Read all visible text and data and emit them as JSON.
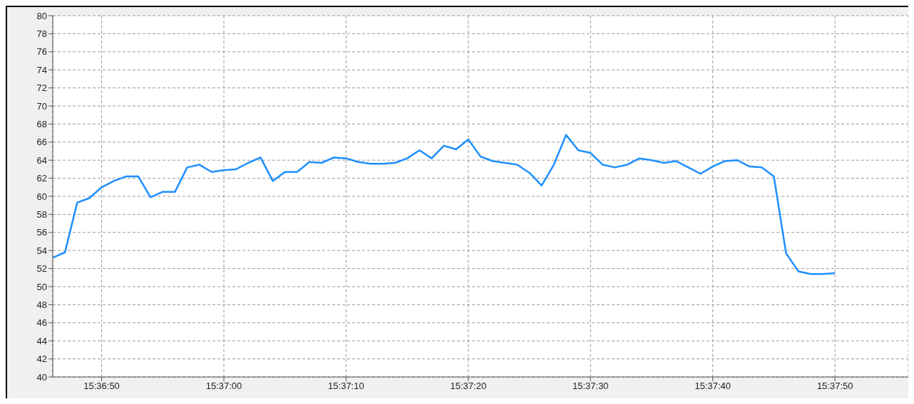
{
  "chart_data": {
    "type": "line",
    "x": [
      15.612778,
      15.613056,
      15.613333,
      15.613611,
      15.613889,
      15.614167,
      15.614444,
      15.614722,
      15.615,
      15.615278,
      15.615556,
      15.615833,
      15.616111,
      15.616389,
      15.616667,
      15.616944,
      15.617222,
      15.6175,
      15.617778,
      15.618056,
      15.618333,
      15.618611,
      15.618889,
      15.619167,
      15.619444,
      15.619722,
      15.62,
      15.620278,
      15.620556,
      15.620833,
      15.621111,
      15.621389,
      15.621667,
      15.621944,
      15.622222,
      15.6225,
      15.622778,
      15.623056,
      15.623333,
      15.623611,
      15.623889,
      15.624167,
      15.624444,
      15.624722,
      15.625,
      15.625278,
      15.625556,
      15.625833,
      15.626111,
      15.626389,
      15.626667,
      15.626944,
      15.627222,
      15.6275,
      15.627778,
      15.628056,
      15.628333,
      15.628611,
      15.628889,
      15.629167,
      15.629444,
      15.629722,
      15.63,
      15.630278,
      15.630556
    ],
    "series": [
      {
        "color": "#1e8fff",
        "values": [
          53.2,
          53.8,
          59.3,
          59.8,
          61.0,
          61.7,
          62.2,
          62.2,
          59.9,
          60.5,
          60.5,
          63.2,
          63.5,
          62.7,
          62.9,
          63.0,
          63.7,
          64.3,
          61.7,
          62.7,
          62.7,
          63.8,
          63.7,
          64.3,
          64.2,
          63.8,
          63.6,
          63.6,
          63.7,
          64.2,
          65.1,
          64.2,
          65.6,
          65.2,
          66.3,
          64.4,
          63.9,
          63.7,
          63.5,
          62.6,
          61.2,
          63.5,
          66.8,
          65.1,
          64.8,
          63.5,
          63.2,
          63.5,
          64.2,
          64.0,
          63.7,
          63.9,
          63.2,
          62.5,
          63.3,
          63.9,
          64.0,
          63.3,
          63.2,
          62.2,
          53.7,
          51.7,
          51.4,
          51.4,
          51.5
        ]
      }
    ],
    "xlim": [
      15.612778,
      15.632222
    ],
    "xticks": [
      {
        "value": 15.613889,
        "label": "15:36:50"
      },
      {
        "value": 15.616667,
        "label": "15:37:00"
      },
      {
        "value": 15.619444,
        "label": "15:37:10"
      },
      {
        "value": 15.622222,
        "label": "15:37:20"
      },
      {
        "value": 15.625,
        "label": "15:37:30"
      },
      {
        "value": 15.627778,
        "label": "15:37:40"
      },
      {
        "value": 15.630556,
        "label": "15:37:50"
      }
    ],
    "ylim": [
      40,
      80
    ],
    "yticks": [
      40,
      42,
      44,
      46,
      48,
      50,
      52,
      54,
      56,
      58,
      60,
      62,
      64,
      66,
      68,
      70,
      72,
      74,
      76,
      78,
      80
    ],
    "grid": true,
    "marker": "none",
    "line_style": "solid",
    "legend": false
  }
}
